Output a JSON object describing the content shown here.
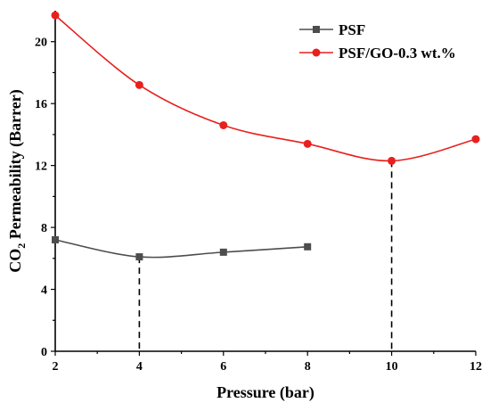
{
  "chart_data": {
    "type": "line",
    "xlabel": "Pressure (bar)",
    "ylabel": {
      "pre": "CO",
      "sub": "2",
      "post": " Permeability (Barrer)"
    },
    "xlim": [
      2,
      12
    ],
    "ylim": [
      0,
      22
    ],
    "x_ticks": [
      "2",
      "4",
      "6",
      "8",
      "10",
      "12"
    ],
    "y_ticks": [
      "0",
      "4",
      "8",
      "12",
      "16",
      "20"
    ],
    "grid": false,
    "legend_position": "top-right",
    "series": [
      {
        "name": "PSF",
        "color": "#4d4d4d",
        "marker": "square",
        "points": [
          {
            "x": 2,
            "y": 7.2
          },
          {
            "x": 4,
            "y": 6.1
          },
          {
            "x": 6,
            "y": 6.4
          },
          {
            "x": 8,
            "y": 6.75
          }
        ]
      },
      {
        "name": "PSF/GO-0.3 wt.%",
        "color": "#e8201e",
        "marker": "circle",
        "points": [
          {
            "x": 2,
            "y": 21.7
          },
          {
            "x": 4,
            "y": 17.2
          },
          {
            "x": 6,
            "y": 14.6
          },
          {
            "x": 8,
            "y": 13.4
          },
          {
            "x": 10,
            "y": 12.3
          },
          {
            "x": 12,
            "y": 13.7
          }
        ]
      }
    ],
    "annotations": [
      {
        "type": "vertical-dashed-line",
        "x": 4,
        "y_top": 6.1
      },
      {
        "type": "vertical-dashed-line",
        "x": 10,
        "y_top": 12.3
      }
    ]
  }
}
